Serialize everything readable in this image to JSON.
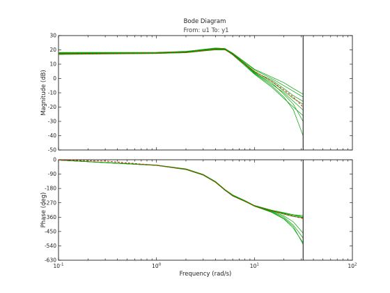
{
  "chart_data": {
    "type": "line",
    "title": "Bode Diagram",
    "subtitle": "From: u1  To: y1",
    "xlabel": "Frequency  (rad/s)",
    "xscale": "log",
    "xlim": [
      0.1,
      100
    ],
    "x_ticks": [
      {
        "value": 0.1,
        "base": "10",
        "exp": "-1"
      },
      {
        "value": 1,
        "base": "10",
        "exp": "0"
      },
      {
        "value": 10,
        "base": "10",
        "exp": "1"
      },
      {
        "value": 100,
        "base": "10",
        "exp": "2"
      }
    ],
    "nyquist_frequency": 31.4,
    "grid": false,
    "colors": {
      "samples": "#00a000",
      "nominal": "#e02000",
      "nyquist": "#000000"
    },
    "magnitude": {
      "ylabel": "Magnitude (dB)",
      "ylim": [
        -50,
        30
      ],
      "yticks": [
        "30",
        "20",
        "10",
        "0",
        "-10",
        "-20",
        "-30",
        "-40",
        "-50"
      ],
      "nominal": {
        "x": [
          0.1,
          0.3,
          1,
          2,
          3,
          4,
          4.5,
          5,
          6,
          8,
          10,
          15,
          20,
          25,
          31.4
        ],
        "y": [
          17.5,
          17.6,
          17.8,
          18.3,
          19.5,
          20.5,
          21,
          20.5,
          17,
          10,
          5,
          -2,
          -8,
          -13,
          -20
        ]
      },
      "samples": [
        {
          "x": [
            0.1,
            1,
            2,
            3,
            4,
            5,
            6,
            8,
            10,
            15,
            20,
            25,
            31.4
          ],
          "y": [
            17,
            17.6,
            18.5,
            19.8,
            20.5,
            20.3,
            17,
            10,
            4,
            -4,
            -10,
            -16,
            -22
          ]
        },
        {
          "x": [
            0.1,
            1,
            2,
            3,
            4,
            5,
            6,
            8,
            10,
            15,
            20,
            25,
            31.4
          ],
          "y": [
            17.8,
            18,
            18.6,
            20,
            21,
            20.4,
            17.5,
            11,
            6,
            0,
            -5,
            -9,
            -13
          ]
        },
        {
          "x": [
            0.1,
            1,
            2,
            3,
            4,
            5,
            6,
            8,
            10,
            15,
            20,
            25,
            31.4
          ],
          "y": [
            18.2,
            18.3,
            19,
            20.2,
            21.2,
            20.8,
            17.2,
            10.5,
            5,
            -2,
            -9,
            -14,
            -18
          ]
        },
        {
          "x": [
            0.1,
            1,
            2,
            3,
            4,
            5,
            6,
            8,
            10,
            15,
            20,
            25,
            31.4
          ],
          "y": [
            16.8,
            17.4,
            18,
            19.2,
            20,
            20,
            16.8,
            9.5,
            3.5,
            -5,
            -13,
            -22,
            -40
          ]
        },
        {
          "x": [
            0.1,
            1,
            2,
            3,
            4,
            5,
            6,
            8,
            10,
            15,
            20,
            25,
            31.4
          ],
          "y": [
            17.4,
            17.7,
            18.4,
            19.6,
            20.6,
            20.6,
            17.4,
            10.2,
            4.5,
            -1,
            -7,
            -12,
            -16
          ]
        },
        {
          "x": [
            0.1,
            1,
            2,
            3,
            4,
            5,
            6,
            8,
            10,
            15,
            20,
            25,
            31.4
          ],
          "y": [
            17.6,
            17.8,
            18.2,
            19.4,
            20.4,
            20.2,
            16.5,
            9,
            3,
            -6,
            -14,
            -20,
            -26
          ]
        },
        {
          "x": [
            0.1,
            1,
            2,
            3,
            4,
            5,
            6,
            8,
            10,
            15,
            20,
            25,
            31.4
          ],
          "y": [
            18,
            18.1,
            18.8,
            20.4,
            21.3,
            21,
            17.8,
            11.5,
            6.5,
            1,
            -3,
            -7,
            -11
          ]
        },
        {
          "x": [
            0.1,
            1,
            2,
            3,
            4,
            5,
            6,
            8,
            10,
            15,
            20,
            25,
            31.4
          ],
          "y": [
            17.2,
            17.5,
            18.1,
            19.5,
            20.2,
            20.1,
            17.1,
            10,
            4.2,
            -3,
            -11,
            -18,
            -30
          ]
        }
      ]
    },
    "phase": {
      "ylabel": "Phase (deg)",
      "ylim": [
        -630,
        0
      ],
      "yticks": [
        "0",
        "-90",
        "-180",
        "-270",
        "-360",
        "-450",
        "-540",
        "-630"
      ],
      "nominal": {
        "x": [
          0.1,
          0.3,
          1,
          2,
          3,
          4,
          5,
          6,
          8,
          10,
          15,
          20,
          25,
          31.4
        ],
        "y": [
          -2,
          -8,
          -35,
          -60,
          -95,
          -140,
          -190,
          -225,
          -260,
          -290,
          -320,
          -340,
          -355,
          -368
        ]
      },
      "samples": [
        {
          "x": [
            0.1,
            1,
            2,
            3,
            4,
            5,
            6,
            8,
            10,
            15,
            20,
            25,
            31.4
          ],
          "y": [
            -2,
            -34,
            -58,
            -93,
            -138,
            -188,
            -222,
            -258,
            -288,
            -322,
            -352,
            -390,
            -460
          ]
        },
        {
          "x": [
            0.1,
            1,
            2,
            3,
            4,
            5,
            6,
            8,
            10,
            15,
            20,
            25,
            31.4
          ],
          "y": [
            -2,
            -36,
            -62,
            -97,
            -142,
            -192,
            -228,
            -262,
            -290,
            -318,
            -335,
            -345,
            -350
          ]
        },
        {
          "x": [
            0.1,
            1,
            2,
            3,
            4,
            5,
            6,
            8,
            10,
            15,
            20,
            25,
            31.4
          ],
          "y": [
            -2,
            -35,
            -60,
            -95,
            -140,
            -190,
            -225,
            -260,
            -292,
            -330,
            -372,
            -430,
            -520
          ]
        },
        {
          "x": [
            0.1,
            1,
            2,
            3,
            4,
            5,
            6,
            8,
            10,
            15,
            20,
            25,
            31.4
          ],
          "y": [
            -2,
            -33,
            -57,
            -92,
            -136,
            -186,
            -220,
            -256,
            -286,
            -316,
            -332,
            -345,
            -358
          ]
        },
        {
          "x": [
            0.1,
            1,
            2,
            3,
            4,
            5,
            6,
            8,
            10,
            15,
            20,
            25,
            31.4
          ],
          "y": [
            -2,
            -36,
            -61,
            -96,
            -141,
            -191,
            -226,
            -261,
            -291,
            -325,
            -360,
            -410,
            -490
          ]
        },
        {
          "x": [
            0.1,
            1,
            2,
            3,
            4,
            5,
            6,
            8,
            10,
            15,
            20,
            25,
            31.4
          ],
          "y": [
            -2,
            -35,
            -59,
            -94,
            -139,
            -189,
            -224,
            -259,
            -289,
            -321,
            -342,
            -356,
            -365
          ]
        },
        {
          "x": [
            0.1,
            1,
            2,
            3,
            4,
            5,
            6,
            8,
            10,
            15,
            20,
            25,
            31.4
          ],
          "y": [
            -2,
            -34,
            -60,
            -95,
            -140,
            -190,
            -225,
            -260,
            -290,
            -328,
            -368,
            -420,
            -530
          ]
        },
        {
          "x": [
            0.1,
            1,
            2,
            3,
            4,
            5,
            6,
            8,
            10,
            15,
            20,
            25,
            31.4
          ],
          "y": [
            -2,
            -35,
            -61,
            -96,
            -141,
            -191,
            -226,
            -261,
            -290,
            -319,
            -338,
            -350,
            -362
          ]
        }
      ]
    }
  }
}
